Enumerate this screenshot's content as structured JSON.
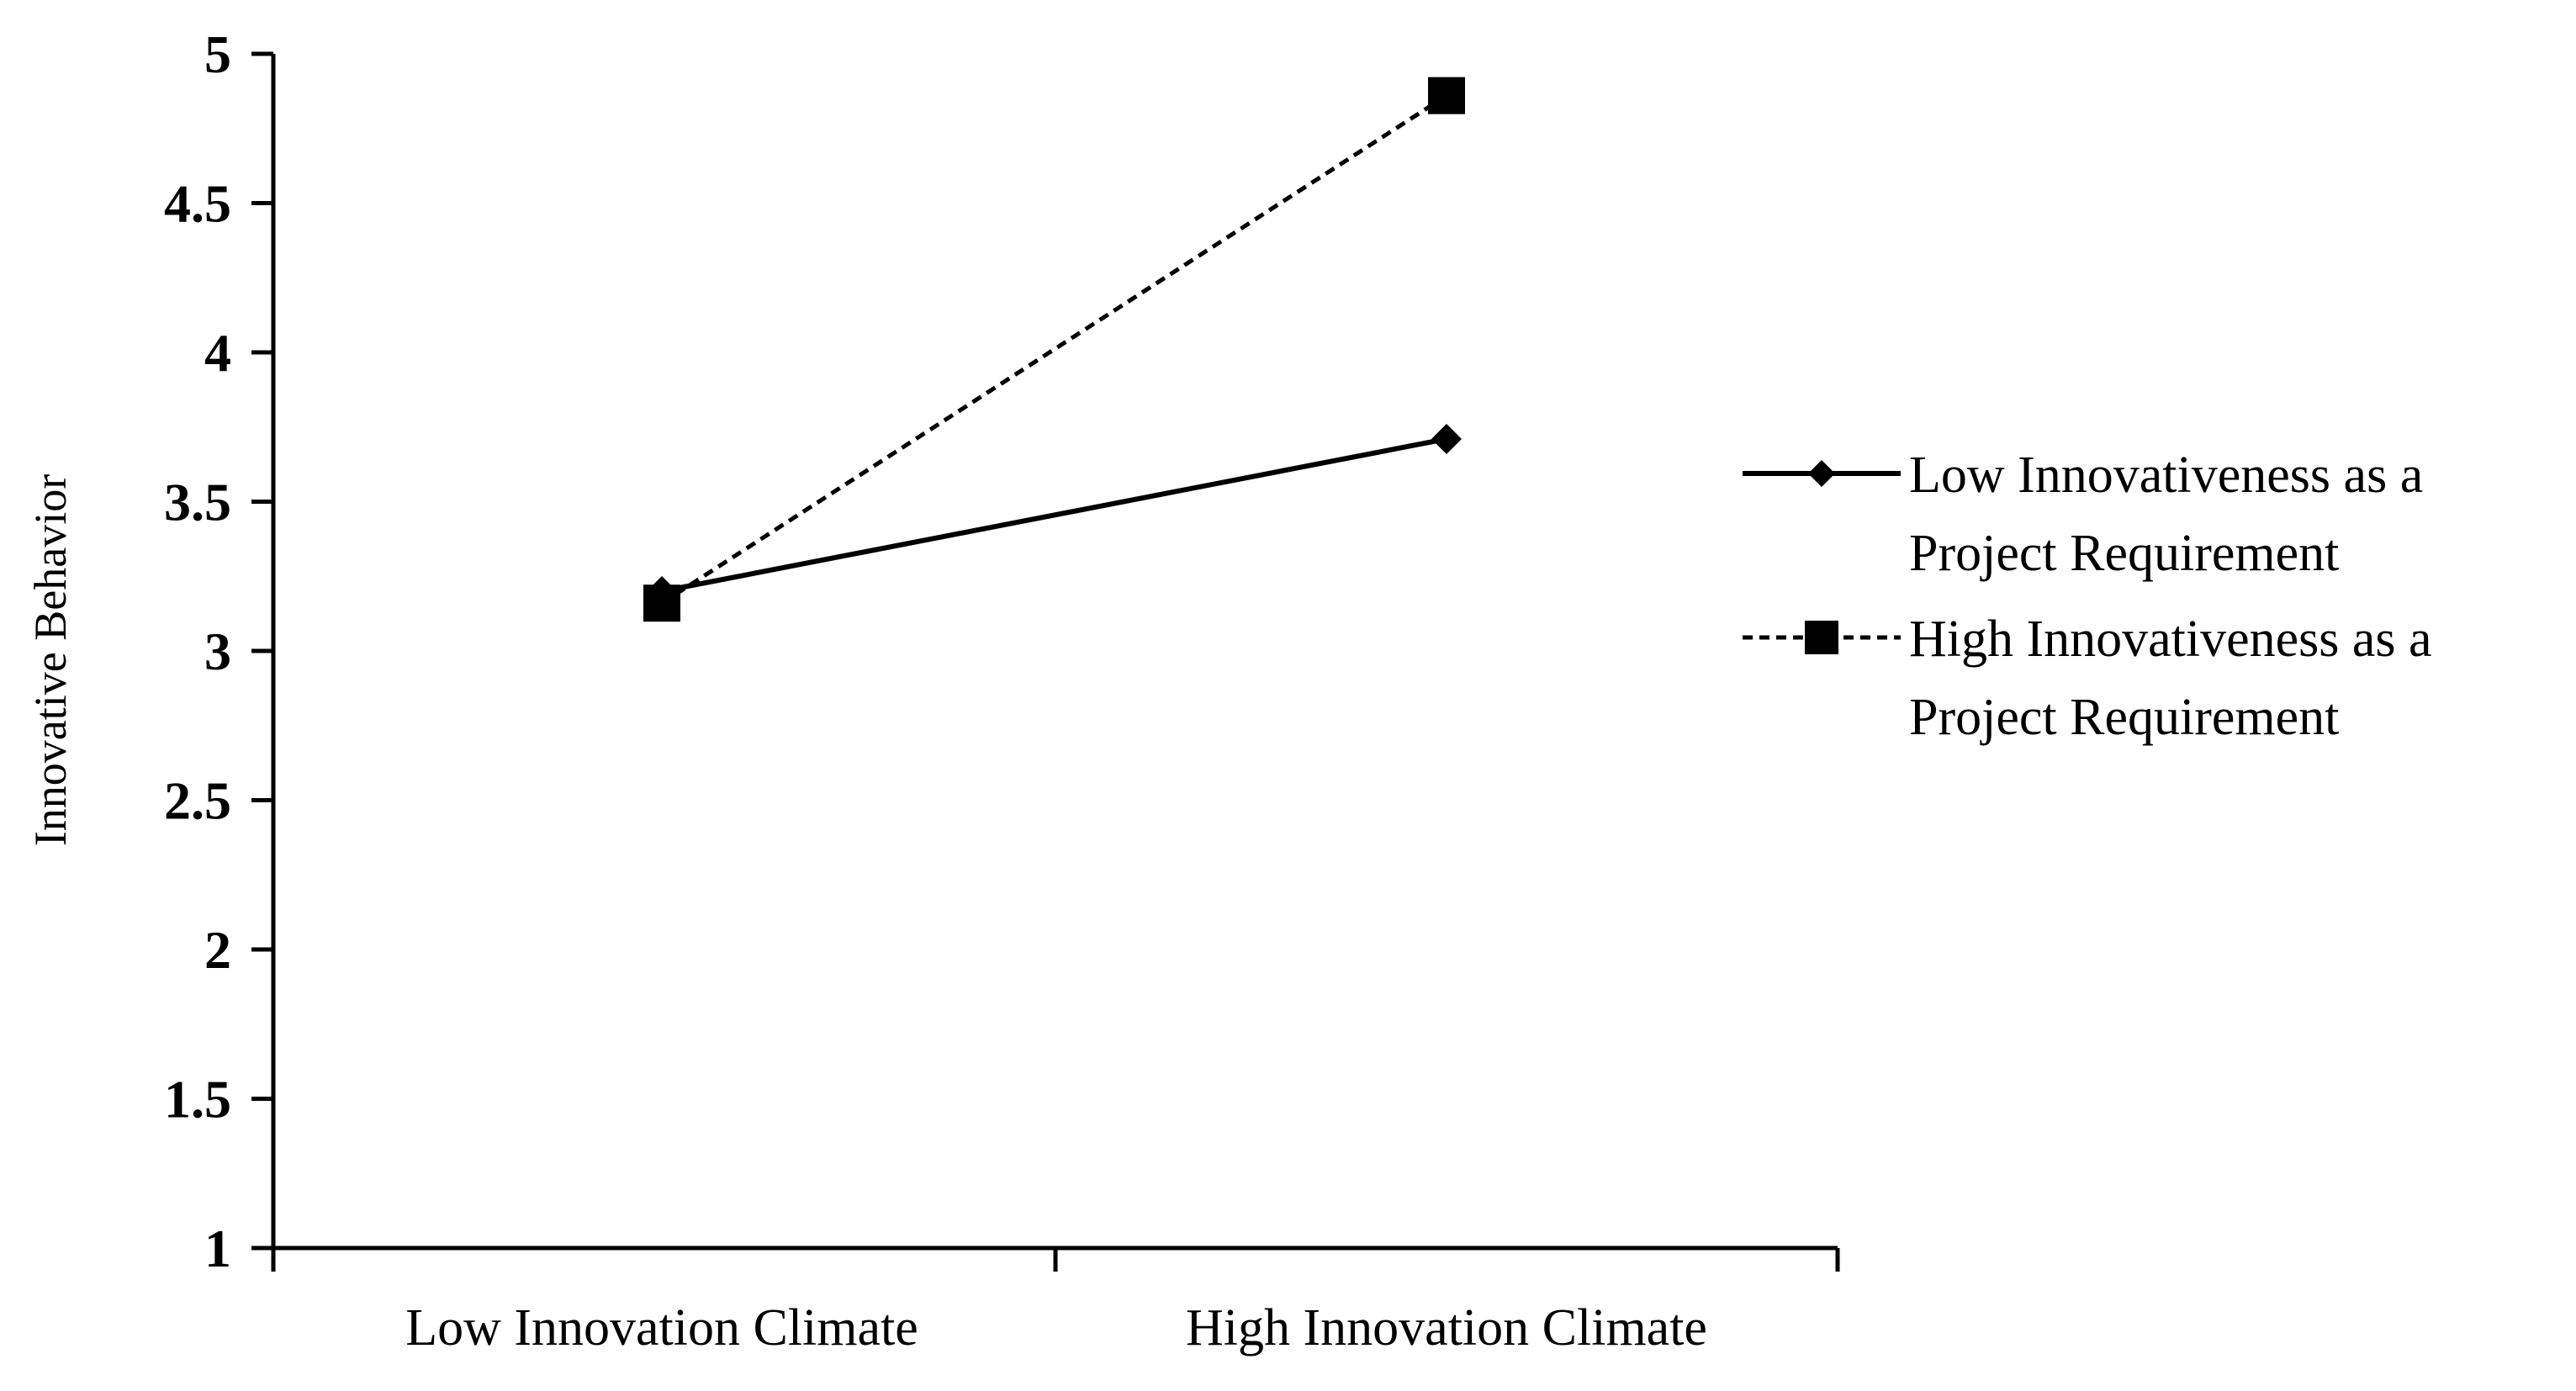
{
  "chart_data": {
    "type": "line",
    "title": "",
    "xlabel": "",
    "ylabel": "Innovative Behavior",
    "categories": [
      "Low Innovation Climate",
      "High Innovation Climate"
    ],
    "ylim": [
      1,
      5
    ],
    "yticks": [
      1,
      1.5,
      2,
      2.5,
      3,
      3.5,
      4,
      4.5,
      5
    ],
    "ytick_labels": [
      "1",
      "1.5",
      "2",
      "2.5",
      "3",
      "3.5",
      "4",
      "4.5",
      "5"
    ],
    "grid": false,
    "legend_position": "right",
    "series": [
      {
        "name": "Low Innovativeness as a Project Requirement",
        "name_lines": [
          "Low Innovativeness as a",
          "Project Requirement"
        ],
        "values": [
          3.2,
          3.71
        ],
        "line_style": "solid",
        "marker": "diamond",
        "color": "#000000"
      },
      {
        "name": "High Innovativeness as a Project Requirement",
        "name_lines": [
          "High Innovativeness as a",
          "Project Requirement"
        ],
        "values": [
          3.16,
          4.86
        ],
        "line_style": "dashed",
        "marker": "square",
        "color": "#000000"
      }
    ]
  }
}
